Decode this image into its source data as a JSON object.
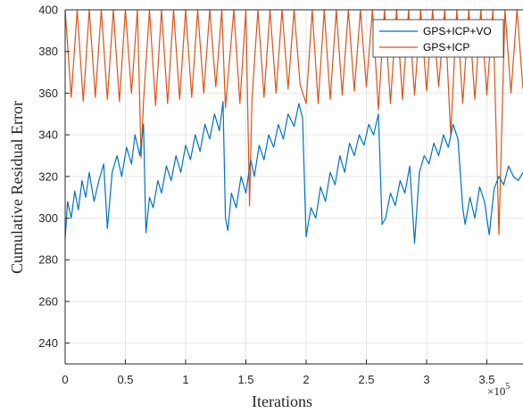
{
  "chart_data": {
    "type": "line",
    "xlabel": "Iterations",
    "ylabel": "Cumulative Residual Error",
    "x_multiplier_base": "×10",
    "x_multiplier_exp": "5",
    "xlim": [
      0,
      3.8
    ],
    "ylim": [
      230,
      400
    ],
    "x_ticks": [
      0,
      0.5,
      1,
      1.5,
      2,
      2.5,
      3,
      3.5
    ],
    "x_tick_labels": [
      "0",
      "0.5",
      "1",
      "1.5",
      "2",
      "2.5",
      "3",
      "3.5"
    ],
    "y_ticks": [
      240,
      260,
      280,
      300,
      320,
      340,
      360,
      380,
      400
    ],
    "y_tick_labels": [
      "240",
      "260",
      "280",
      "300",
      "320",
      "340",
      "360",
      "380",
      "400"
    ],
    "grid": true,
    "legend_position": "top-right",
    "series": [
      {
        "name": "GPS+ICP+VO",
        "color": "#0072BD",
        "x": [
          0.0,
          0.02,
          0.05,
          0.08,
          0.11,
          0.14,
          0.17,
          0.2,
          0.24,
          0.28,
          0.32,
          0.35,
          0.39,
          0.43,
          0.47,
          0.51,
          0.55,
          0.58,
          0.62,
          0.65,
          0.67,
          0.7,
          0.73,
          0.77,
          0.8,
          0.84,
          0.88,
          0.92,
          0.96,
          1.0,
          1.04,
          1.08,
          1.12,
          1.16,
          1.2,
          1.24,
          1.28,
          1.31,
          1.33,
          1.35,
          1.38,
          1.42,
          1.46,
          1.5,
          1.54,
          1.57,
          1.61,
          1.65,
          1.69,
          1.73,
          1.77,
          1.81,
          1.85,
          1.9,
          1.94,
          1.97,
          2.0,
          2.04,
          2.08,
          2.12,
          2.16,
          2.2,
          2.24,
          2.28,
          2.32,
          2.36,
          2.4,
          2.44,
          2.48,
          2.52,
          2.56,
          2.6,
          2.63,
          2.66,
          2.7,
          2.74,
          2.78,
          2.82,
          2.86,
          2.9,
          2.94,
          2.98,
          3.02,
          3.06,
          3.1,
          3.14,
          3.18,
          3.22,
          3.26,
          3.3,
          3.32,
          3.36,
          3.4,
          3.44,
          3.48,
          3.52,
          3.56,
          3.6,
          3.64,
          3.68,
          3.72,
          3.76,
          3.8
        ],
        "y": [
          290,
          308,
          300,
          313,
          304,
          318,
          310,
          322,
          308,
          318,
          326,
          295,
          322,
          330,
          320,
          334,
          326,
          340,
          330,
          345,
          293,
          310,
          305,
          318,
          312,
          325,
          318,
          330,
          322,
          335,
          328,
          340,
          332,
          345,
          338,
          350,
          342,
          356,
          300,
          294,
          312,
          305,
          320,
          312,
          328,
          320,
          335,
          328,
          340,
          334,
          345,
          338,
          350,
          344,
          355,
          348,
          291,
          305,
          300,
          315,
          308,
          322,
          316,
          330,
          322,
          336,
          330,
          340,
          335,
          345,
          340,
          350,
          297,
          300,
          312,
          306,
          318,
          312,
          325,
          288,
          322,
          330,
          326,
          336,
          330,
          340,
          334,
          345,
          338,
          305,
          297,
          310,
          300,
          315,
          308,
          292,
          314,
          320,
          316,
          325,
          320,
          318,
          322
        ]
      },
      {
        "name": "GPS+ICP",
        "color": "#D95319",
        "x": [
          0.0,
          0.05,
          0.1,
          0.15,
          0.2,
          0.25,
          0.3,
          0.35,
          0.4,
          0.45,
          0.5,
          0.55,
          0.6,
          0.63,
          0.65,
          0.7,
          0.75,
          0.8,
          0.85,
          0.9,
          0.95,
          1.0,
          1.05,
          1.1,
          1.15,
          1.2,
          1.25,
          1.3,
          1.33,
          1.4,
          1.45,
          1.5,
          1.53,
          1.55,
          1.6,
          1.65,
          1.7,
          1.75,
          1.8,
          1.85,
          1.9,
          1.95,
          2.0,
          2.05,
          2.1,
          2.15,
          2.2,
          2.25,
          2.3,
          2.35,
          2.4,
          2.45,
          2.5,
          2.55,
          2.6,
          2.65,
          2.7,
          2.75,
          2.8,
          2.85,
          2.9,
          2.95,
          3.0,
          3.05,
          3.1,
          3.15,
          3.2,
          3.25,
          3.3,
          3.35,
          3.4,
          3.45,
          3.5,
          3.55,
          3.6,
          3.65,
          3.7,
          3.75,
          3.8
        ],
        "y": [
          400,
          358,
          400,
          356,
          400,
          358,
          400,
          357,
          400,
          356,
          400,
          360,
          400,
          329,
          356,
          400,
          354,
          400,
          355,
          400,
          357,
          400,
          358,
          400,
          360,
          400,
          363,
          400,
          353,
          400,
          355,
          400,
          306,
          357,
          400,
          358,
          400,
          360,
          400,
          362,
          400,
          364,
          355,
          400,
          355,
          400,
          357,
          400,
          359,
          400,
          361,
          400,
          363,
          400,
          352,
          400,
          355,
          400,
          357,
          400,
          359,
          400,
          361,
          400,
          363,
          400,
          340,
          400,
          355,
          400,
          357,
          400,
          359,
          400,
          292,
          400,
          360,
          400,
          362
        ]
      }
    ]
  }
}
